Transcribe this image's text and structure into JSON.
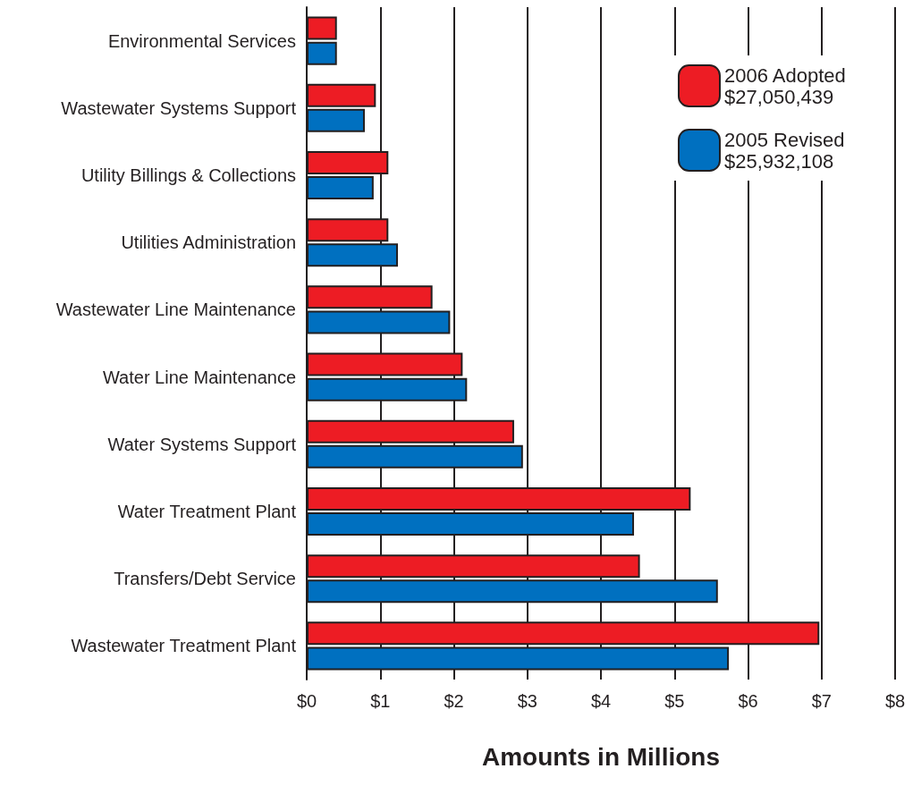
{
  "chart_data": {
    "type": "bar",
    "orientation": "horizontal",
    "xlabel": "Amounts in Millions",
    "categories": [
      "Environmental Services",
      "Wastewater Systems Support",
      "Utility Billings & Collections",
      "Utilities Administration",
      "Wastewater Line Maintenance",
      "Water Line Maintenance",
      "Water Systems Support",
      "Water Treatment Plant",
      "Transfers/Debt Service",
      "Wastewater Treatment Plant"
    ],
    "series": [
      {
        "name": "2006 Adopted\n$27,050,439",
        "color": "#ed1c24",
        "values": [
          0.41,
          0.94,
          1.11,
          1.11,
          1.71,
          2.12,
          2.82,
          5.22,
          4.53,
          6.97
        ]
      },
      {
        "name": "2005 Revised\n$25,932,108",
        "color": "#0070c0",
        "values": [
          0.41,
          0.79,
          0.91,
          1.24,
          1.95,
          2.18,
          2.94,
          4.45,
          5.59,
          5.74
        ]
      }
    ],
    "xlim": [
      0,
      8
    ],
    "xticks": [
      {
        "value": 0,
        "label": "$0"
      },
      {
        "value": 1,
        "label": "$1"
      },
      {
        "value": 2,
        "label": "$2"
      },
      {
        "value": 3,
        "label": "$3"
      },
      {
        "value": 4,
        "label": "$4"
      },
      {
        "value": 5,
        "label": "$5"
      },
      {
        "value": 6,
        "label": "$6"
      },
      {
        "value": 7,
        "label": "$7"
      },
      {
        "value": 8,
        "label": "$8"
      }
    ],
    "grid": "x",
    "legend": "top right"
  }
}
